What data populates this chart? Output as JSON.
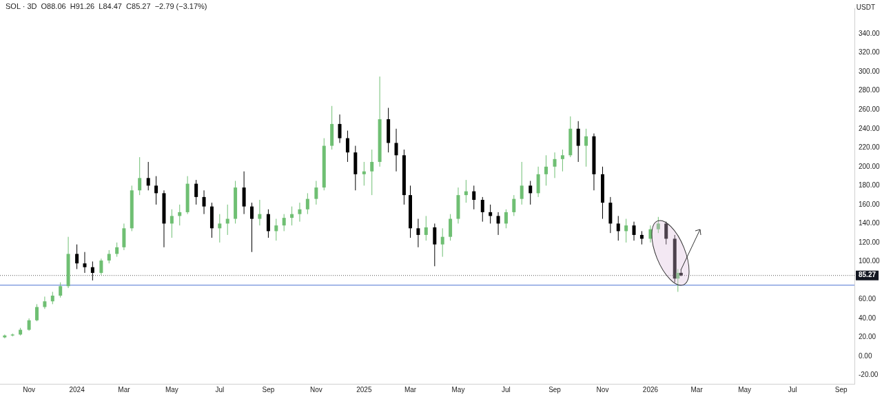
{
  "chart_data": {
    "type": "candlestick",
    "title": "SOL · 3D  O88.06  H91.26  L84.47  C85.27  −2.79 (−3.17%)",
    "ylabel": "USDT",
    "x": [
      "2023-10-01",
      "2023-10-11",
      "2023-10-21",
      "2023-11-01",
      "2023-11-11",
      "2023-11-21",
      "2023-12-01",
      "2023-12-11",
      "2023-12-21",
      "2024-01-01",
      "2024-01-11",
      "2024-01-21",
      "2024-02-01",
      "2024-02-11",
      "2024-02-21",
      "2024-03-01",
      "2024-03-11",
      "2024-03-21",
      "2024-04-01",
      "2024-04-11",
      "2024-04-21",
      "2024-05-01",
      "2024-05-11",
      "2024-05-21",
      "2024-06-01",
      "2024-06-11",
      "2024-06-21",
      "2024-07-01",
      "2024-07-11",
      "2024-07-21",
      "2024-08-01",
      "2024-08-11",
      "2024-08-21",
      "2024-09-01",
      "2024-09-11",
      "2024-09-21",
      "2024-10-01",
      "2024-10-11",
      "2024-10-21",
      "2024-11-01",
      "2024-11-11",
      "2024-11-21",
      "2024-12-01",
      "2024-12-11",
      "2024-12-21",
      "2025-01-01",
      "2025-01-11",
      "2025-01-21",
      "2025-02-01",
      "2025-02-11",
      "2025-02-21",
      "2025-03-01",
      "2025-03-11",
      "2025-03-21",
      "2025-04-01",
      "2025-04-11",
      "2025-04-21",
      "2025-05-01",
      "2025-05-11",
      "2025-05-21",
      "2025-06-01",
      "2025-06-11",
      "2025-06-21",
      "2025-07-01",
      "2025-07-11",
      "2025-07-21",
      "2025-08-01",
      "2025-08-11",
      "2025-08-21",
      "2025-09-01",
      "2025-09-11",
      "2025-09-21",
      "2025-10-01",
      "2025-10-11",
      "2025-10-21",
      "2025-11-01",
      "2025-11-11",
      "2025-11-21",
      "2025-12-01",
      "2025-12-11",
      "2025-12-21",
      "2026-01-01",
      "2026-01-11",
      "2026-01-21",
      "2026-02-01",
      "2026-02-05",
      "2026-02-09"
    ],
    "ohlc": [
      [
        20,
        23,
        19,
        22
      ],
      [
        22,
        24,
        21,
        23
      ],
      [
        23,
        30,
        22,
        28
      ],
      [
        28,
        40,
        27,
        38
      ],
      [
        38,
        55,
        37,
        52
      ],
      [
        52,
        63,
        50,
        58
      ],
      [
        58,
        68,
        55,
        64
      ],
      [
        64,
        78,
        62,
        74
      ],
      [
        74,
        126,
        72,
        108
      ],
      [
        108,
        118,
        92,
        98
      ],
      [
        98,
        110,
        88,
        94
      ],
      [
        94,
        100,
        80,
        88
      ],
      [
        88,
        103,
        86,
        101
      ],
      [
        101,
        112,
        98,
        108
      ],
      [
        108,
        120,
        105,
        115
      ],
      [
        115,
        140,
        112,
        135
      ],
      [
        135,
        180,
        132,
        175
      ],
      [
        175,
        210,
        170,
        188
      ],
      [
        188,
        205,
        175,
        180
      ],
      [
        180,
        190,
        160,
        172
      ],
      [
        172,
        175,
        115,
        140
      ],
      [
        140,
        155,
        125,
        148
      ],
      [
        148,
        160,
        138,
        152
      ],
      [
        152,
        190,
        150,
        182
      ],
      [
        182,
        186,
        160,
        168
      ],
      [
        168,
        175,
        150,
        158
      ],
      [
        158,
        162,
        125,
        135
      ],
      [
        135,
        150,
        120,
        140
      ],
      [
        140,
        160,
        128,
        145
      ],
      [
        145,
        185,
        140,
        178
      ],
      [
        178,
        195,
        150,
        158
      ],
      [
        158,
        162,
        110,
        145
      ],
      [
        145,
        165,
        138,
        150
      ],
      [
        150,
        155,
        125,
        132
      ],
      [
        132,
        145,
        122,
        138
      ],
      [
        138,
        150,
        132,
        146
      ],
      [
        146,
        158,
        138,
        150
      ],
      [
        150,
        162,
        142,
        155
      ],
      [
        155,
        172,
        150,
        166
      ],
      [
        166,
        185,
        160,
        178
      ],
      [
        178,
        230,
        175,
        222
      ],
      [
        222,
        264,
        218,
        245
      ],
      [
        245,
        255,
        225,
        230
      ],
      [
        230,
        238,
        205,
        215
      ],
      [
        215,
        222,
        175,
        192
      ],
      [
        192,
        205,
        180,
        195
      ],
      [
        195,
        218,
        170,
        205
      ],
      [
        205,
        295,
        200,
        250
      ],
      [
        250,
        262,
        215,
        225
      ],
      [
        225,
        240,
        195,
        212
      ],
      [
        212,
        218,
        160,
        170
      ],
      [
        170,
        180,
        125,
        135
      ],
      [
        135,
        145,
        115,
        128
      ],
      [
        128,
        148,
        122,
        136
      ],
      [
        136,
        140,
        95,
        118
      ],
      [
        118,
        135,
        105,
        126
      ],
      [
        126,
        150,
        122,
        145
      ],
      [
        145,
        178,
        140,
        170
      ],
      [
        170,
        186,
        162,
        174
      ],
      [
        174,
        180,
        155,
        165
      ],
      [
        165,
        168,
        142,
        152
      ],
      [
        152,
        160,
        140,
        148
      ],
      [
        148,
        152,
        128,
        140
      ],
      [
        140,
        155,
        135,
        152
      ],
      [
        152,
        170,
        148,
        166
      ],
      [
        166,
        205,
        160,
        180
      ],
      [
        180,
        185,
        160,
        172
      ],
      [
        172,
        200,
        168,
        192
      ],
      [
        192,
        212,
        180,
        200
      ],
      [
        200,
        215,
        188,
        208
      ],
      [
        208,
        218,
        195,
        212
      ],
      [
        212,
        253,
        210,
        240
      ],
      [
        240,
        248,
        205,
        222
      ],
      [
        222,
        240,
        200,
        232
      ],
      [
        232,
        235,
        175,
        192
      ],
      [
        192,
        200,
        145,
        162
      ],
      [
        162,
        168,
        130,
        140
      ],
      [
        140,
        148,
        122,
        132
      ],
      [
        132,
        145,
        120,
        138
      ],
      [
        138,
        142,
        122,
        128
      ],
      [
        128,
        132,
        118,
        124
      ],
      [
        124,
        138,
        120,
        134
      ],
      [
        134,
        147,
        130,
        140
      ],
      [
        140,
        142,
        118,
        124
      ],
      [
        124,
        128,
        78,
        82
      ],
      [
        82,
        92,
        68,
        88
      ],
      [
        88.06,
        91.26,
        84.47,
        85.27
      ]
    ],
    "colors": [
      "#6fbf73",
      "#6fbf73",
      "#6fbf73",
      "#6fbf73",
      "#6fbf73",
      "#6fbf73",
      "#6fbf73",
      "#6fbf73",
      "#6fbf73",
      "#000000",
      "#000000",
      "#000000",
      "#6fbf73",
      "#6fbf73",
      "#6fbf73",
      "#6fbf73",
      "#6fbf73",
      "#6fbf73",
      "#000000",
      "#000000",
      "#000000",
      "#6fbf73",
      "#6fbf73",
      "#6fbf73",
      "#000000",
      "#000000",
      "#000000",
      "#6fbf73",
      "#6fbf73",
      "#6fbf73",
      "#000000",
      "#000000",
      "#6fbf73",
      "#000000",
      "#6fbf73",
      "#6fbf73",
      "#6fbf73",
      "#6fbf73",
      "#6fbf73",
      "#6fbf73",
      "#6fbf73",
      "#6fbf73",
      "#000000",
      "#000000",
      "#000000",
      "#6fbf73",
      "#6fbf73",
      "#6fbf73",
      "#000000",
      "#000000",
      "#000000",
      "#000000",
      "#000000",
      "#6fbf73",
      "#000000",
      "#6fbf73",
      "#6fbf73",
      "#6fbf73",
      "#6fbf73",
      "#000000",
      "#000000",
      "#000000",
      "#000000",
      "#6fbf73",
      "#6fbf73",
      "#6fbf73",
      "#000000",
      "#6fbf73",
      "#6fbf73",
      "#6fbf73",
      "#6fbf73",
      "#6fbf73",
      "#000000",
      "#6fbf73",
      "#000000",
      "#000000",
      "#000000",
      "#000000",
      "#6fbf73",
      "#000000",
      "#000000",
      "#6fbf73",
      "#6fbf73",
      "#000000",
      "#000000",
      "#6fbf73",
      "#000000"
    ],
    "xlim": [
      "2023-09-25",
      "2026-09-18"
    ],
    "xticks": [
      {
        "value": "2023-11-01",
        "label": "Nov"
      },
      {
        "value": "2024-01-01",
        "label": "2024"
      },
      {
        "value": "2024-03-01",
        "label": "Mar"
      },
      {
        "value": "2024-05-01",
        "label": "May"
      },
      {
        "value": "2024-07-01",
        "label": "Jul"
      },
      {
        "value": "2024-09-01",
        "label": "Sep"
      },
      {
        "value": "2024-11-01",
        "label": "Nov"
      },
      {
        "value": "2025-01-01",
        "label": "2025"
      },
      {
        "value": "2025-03-01",
        "label": "Mar"
      },
      {
        "value": "2025-05-01",
        "label": "May"
      },
      {
        "value": "2025-07-01",
        "label": "Jul"
      },
      {
        "value": "2025-09-01",
        "label": "Sep"
      },
      {
        "value": "2025-11-01",
        "label": "Nov"
      },
      {
        "value": "2026-01-01",
        "label": "2026"
      },
      {
        "value": "2026-03-01",
        "label": "Mar"
      },
      {
        "value": "2026-05-01",
        "label": "May"
      },
      {
        "value": "2026-07-01",
        "label": "Jul"
      },
      {
        "value": "2026-09-01",
        "label": "Sep"
      }
    ],
    "ylim": [
      -29,
      367
    ],
    "yticks": [
      {
        "value": -20,
        "label": "-20.00"
      },
      {
        "value": 0,
        "label": "0.00"
      },
      {
        "value": 20,
        "label": "20.00"
      },
      {
        "value": 40,
        "label": "40.00"
      },
      {
        "value": 60,
        "label": "60.00"
      },
      {
        "value": 100,
        "label": "100.00"
      },
      {
        "value": 120,
        "label": "120.00"
      },
      {
        "value": 140,
        "label": "140.00"
      },
      {
        "value": 160,
        "label": "160.00"
      },
      {
        "value": 180,
        "label": "180.00"
      },
      {
        "value": 200,
        "label": "200.00"
      },
      {
        "value": 220,
        "label": "220.00"
      },
      {
        "value": 240,
        "label": "240.00"
      },
      {
        "value": 260,
        "label": "260.00"
      },
      {
        "value": 280,
        "label": "280.00"
      },
      {
        "value": 300,
        "label": "300.00"
      },
      {
        "value": 320,
        "label": "320.00"
      },
      {
        "value": 340,
        "label": "340.00"
      }
    ],
    "ref_lines": [
      {
        "axis": "y",
        "value": 75,
        "label": null,
        "color": "#4a6fd1",
        "line_style": "solid"
      },
      {
        "axis": "y",
        "value": 85.27,
        "label": "85.27",
        "color": "#555555",
        "line_style": "dotted"
      }
    ],
    "grid": false
  }
}
